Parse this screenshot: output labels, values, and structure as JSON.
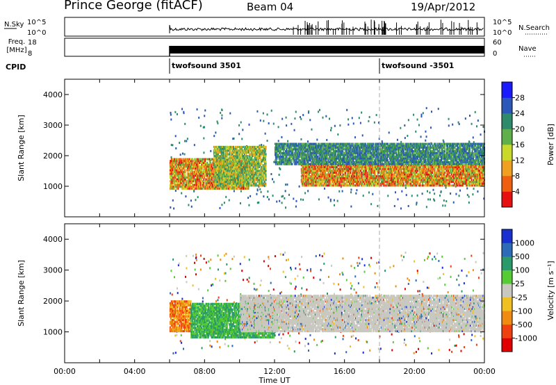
{
  "header": {
    "station": "Prince George (fitACF)",
    "beam": "Beam 04",
    "date": "19/Apr/2012"
  },
  "top_panels": {
    "nsky": {
      "label": "N.Sky",
      "ticks": [
        "10^5",
        "10^0"
      ]
    },
    "nsearch": {
      "label": "N.Search",
      "ticks": [
        "10^5",
        "10^0"
      ]
    },
    "freq": {
      "label_line1": "Freq.",
      "label_line2": "[MHz]",
      "ticks": [
        "18",
        "8"
      ]
    },
    "nave": {
      "label": "Nave",
      "ticks": [
        "60",
        "0"
      ]
    },
    "cpid": {
      "label": "CPID",
      "entries": [
        {
          "time_hour": 6.0,
          "text": "twofsound 3501"
        },
        {
          "time_hour": 18.0,
          "text": "twofsound -3501"
        }
      ]
    }
  },
  "chart_data": [
    {
      "type": "heatmap",
      "panel": "power",
      "ylabel": "Slant Range [km]",
      "ylim": [
        0,
        4500
      ],
      "y_ticks": [
        1000,
        2000,
        3000,
        4000
      ],
      "xlim": [
        0,
        24
      ],
      "colorbar": {
        "label": "Power [dB]",
        "ticks": [
          "4",
          "8",
          "12",
          "16",
          "20",
          "24",
          "28"
        ],
        "colors": [
          "#1a1aff",
          "#2a57b8",
          "#2d8a6a",
          "#5fb04a",
          "#c9d92a",
          "#f0a020",
          "#f05f10",
          "#e61010"
        ]
      },
      "echo_regions": [
        {
          "t_start": 6.0,
          "t_end": 10.5,
          "r_low": 900,
          "r_high": 1900,
          "level": "high"
        },
        {
          "t_start": 8.5,
          "t_end": 11.5,
          "r_low": 1000,
          "r_high": 2300,
          "level": "mid"
        },
        {
          "t_start": 13.5,
          "t_end": 24.0,
          "r_low": 1000,
          "r_high": 1700,
          "level": "high"
        },
        {
          "t_start": 12.0,
          "t_end": 24.0,
          "r_low": 1700,
          "r_high": 2400,
          "level": "low"
        }
      ]
    },
    {
      "type": "heatmap",
      "panel": "velocity",
      "ylabel": "Slant Range [km]",
      "ylim": [
        0,
        4500
      ],
      "y_ticks": [
        1000,
        2000,
        3000,
        4000
      ],
      "xlim": [
        0,
        24
      ],
      "xlabel": "Time UT",
      "x_ticks": [
        "00:00",
        "04:00",
        "08:00",
        "12:00",
        "16:00",
        "20:00",
        "00:00"
      ],
      "colorbar": {
        "label": "Velocity [m s⁻¹]",
        "ticks": [
          "1000",
          "500",
          "100",
          "25",
          "-25",
          "-100",
          "-500",
          "-1000"
        ],
        "colors": [
          "#1a2fd0",
          "#2d6ab8",
          "#2a9a6a",
          "#55cc33",
          "#c8c8c0",
          "#f0c020",
          "#f08a10",
          "#f04010",
          "#e00000"
        ]
      },
      "echo_regions": [
        {
          "t_start": 6.0,
          "t_end": 7.2,
          "r_low": 1000,
          "r_high": 2000,
          "level": "negative"
        },
        {
          "t_start": 7.2,
          "t_end": 12.0,
          "r_low": 800,
          "r_high": 1900,
          "level": "positive"
        },
        {
          "t_start": 10.0,
          "t_end": 24.0,
          "r_low": 1000,
          "r_high": 2200,
          "level": "ground"
        }
      ]
    }
  ]
}
